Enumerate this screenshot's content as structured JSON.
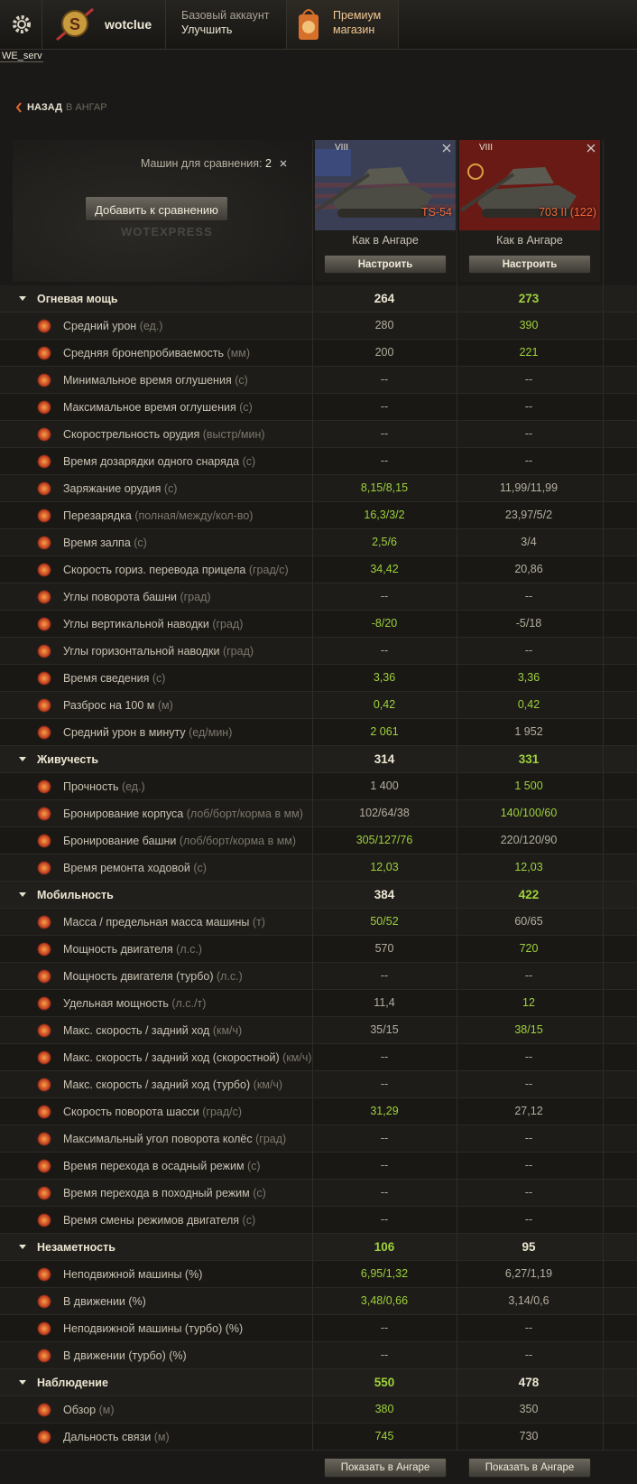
{
  "header": {
    "user": "wotclue",
    "account": "Базовый аккаунт",
    "upgrade": "Улучшить",
    "premium": "Премиум",
    "shop": "магазин",
    "server": "WE_serv"
  },
  "nav": {
    "back": "НАЗАД",
    "to": "В АНГАР"
  },
  "compare": {
    "count_label": "Машин для сравнения:",
    "count": 2,
    "add": "Добавить к сравнению",
    "watermark": "WOTEXPRESS"
  },
  "tanks": [
    {
      "tier": "VIII",
      "name": "TS-54",
      "setup": "Как в Ангаре",
      "configure": "Настроить",
      "show": "Показать в Ангаре"
    },
    {
      "tier": "VIII",
      "name": "703 II (122)",
      "setup": "Как в Ангаре",
      "configure": "Настроить",
      "show": "Показать в Ангаре"
    }
  ],
  "sections": [
    {
      "title": "Огневая мощь",
      "values": [
        264,
        273
      ],
      "better": [
        false,
        true
      ],
      "rows": [
        {
          "label": "Средний урон",
          "unit": "(ед.)",
          "values": [
            "280",
            "390"
          ],
          "better": [
            false,
            true
          ]
        },
        {
          "label": "Средняя бронепробиваемость",
          "unit": "(мм)",
          "values": [
            "200",
            "221"
          ],
          "better": [
            false,
            true
          ]
        },
        {
          "label": "Минимальное время оглушения",
          "unit": "(с)",
          "values": [
            "--",
            "--"
          ],
          "better": [
            false,
            false
          ]
        },
        {
          "label": "Максимальное время оглушения",
          "unit": "(с)",
          "values": [
            "--",
            "--"
          ],
          "better": [
            false,
            false
          ]
        },
        {
          "label": "Скорострельность орудия",
          "unit": "(выстр/мин)",
          "values": [
            "--",
            "--"
          ],
          "better": [
            false,
            false
          ]
        },
        {
          "label": "Время дозарядки одного снаряда",
          "unit": "(с)",
          "values": [
            "--",
            "--"
          ],
          "better": [
            false,
            false
          ]
        },
        {
          "label": "Заряжание орудия",
          "unit": "(с)",
          "values": [
            "8,15/8,15",
            "11,99/11,99"
          ],
          "better": [
            true,
            false
          ]
        },
        {
          "label": "Перезарядка",
          "unit": "(полная/между/кол-во)",
          "values": [
            "16,3/3/2",
            "23,97/5/2"
          ],
          "better": [
            true,
            false
          ]
        },
        {
          "label": "Время залпа",
          "unit": "(с)",
          "values": [
            "2,5/6",
            "3/4"
          ],
          "better": [
            true,
            false
          ]
        },
        {
          "label": "Скорость гориз. перевода прицела",
          "unit": "(град/с)",
          "values": [
            "34,42",
            "20,86"
          ],
          "better": [
            true,
            false
          ]
        },
        {
          "label": "Углы поворота башни",
          "unit": "(град)",
          "values": [
            "--",
            "--"
          ],
          "better": [
            false,
            false
          ]
        },
        {
          "label": "Углы вертикальной наводки",
          "unit": "(град)",
          "values": [
            "-8/20",
            "-5/18"
          ],
          "better": [
            true,
            false
          ]
        },
        {
          "label": "Углы горизонтальной наводки",
          "unit": "(град)",
          "values": [
            "--",
            "--"
          ],
          "better": [
            false,
            false
          ]
        },
        {
          "label": "Время сведения",
          "unit": "(с)",
          "values": [
            "3,36",
            "3,36"
          ],
          "better": [
            true,
            true
          ]
        },
        {
          "label": "Разброс на 100 м",
          "unit": "(м)",
          "values": [
            "0,42",
            "0,42"
          ],
          "better": [
            true,
            true
          ]
        },
        {
          "label": "Средний урон в минуту",
          "unit": "(ед/мин)",
          "values": [
            "2 061",
            "1 952"
          ],
          "better": [
            true,
            false
          ]
        }
      ]
    },
    {
      "title": "Живучесть",
      "values": [
        314,
        331
      ],
      "better": [
        false,
        true
      ],
      "rows": [
        {
          "label": "Прочность",
          "unit": "(ед.)",
          "values": [
            "1 400",
            "1 500"
          ],
          "better": [
            false,
            true
          ]
        },
        {
          "label": "Бронирование корпуса",
          "unit": "(лоб/борт/корма в мм)",
          "values": [
            "102/64/38",
            "140/100/60"
          ],
          "better": [
            false,
            true
          ]
        },
        {
          "label": "Бронирование башни",
          "unit": "(лоб/борт/корма в мм)",
          "values": [
            "305/127/76",
            "220/120/90"
          ],
          "better": [
            true,
            false
          ]
        },
        {
          "label": "Время ремонта ходовой",
          "unit": "(с)",
          "values": [
            "12,03",
            "12,03"
          ],
          "better": [
            true,
            true
          ]
        }
      ]
    },
    {
      "title": "Мобильность",
      "values": [
        384,
        422
      ],
      "better": [
        false,
        true
      ],
      "rows": [
        {
          "label": "Масса / предельная масса машины",
          "unit": "(т)",
          "values": [
            "50/52",
            "60/65"
          ],
          "better": [
            true,
            false
          ]
        },
        {
          "label": "Мощность двигателя",
          "unit": "(л.с.)",
          "values": [
            "570",
            "720"
          ],
          "better": [
            false,
            true
          ]
        },
        {
          "label": "Мощность двигателя (турбо)",
          "unit": "(л.с.)",
          "values": [
            "--",
            "--"
          ],
          "better": [
            false,
            false
          ]
        },
        {
          "label": "Удельная мощность",
          "unit": "(л.с./т)",
          "values": [
            "11,4",
            "12"
          ],
          "better": [
            false,
            true
          ]
        },
        {
          "label": "Макс. скорость / задний ход",
          "unit": "(км/ч)",
          "values": [
            "35/15",
            "38/15"
          ],
          "better": [
            false,
            true
          ]
        },
        {
          "label": "Макс. скорость / задний ход (скоростной)",
          "unit": "(км/ч)",
          "values": [
            "--",
            "--"
          ],
          "better": [
            false,
            false
          ]
        },
        {
          "label": "Макс. скорость / задний ход (турбо)",
          "unit": "(км/ч)",
          "values": [
            "--",
            "--"
          ],
          "better": [
            false,
            false
          ]
        },
        {
          "label": "Скорость поворота шасси",
          "unit": "(град/с)",
          "values": [
            "31,29",
            "27,12"
          ],
          "better": [
            true,
            false
          ]
        },
        {
          "label": "Максимальный угол поворота колёс",
          "unit": "(град)",
          "values": [
            "--",
            "--"
          ],
          "better": [
            false,
            false
          ]
        },
        {
          "label": "Время перехода в осадный режим ",
          "unit": "(с)",
          "values": [
            "--",
            "--"
          ],
          "better": [
            false,
            false
          ]
        },
        {
          "label": "Время перехода в походный режим ",
          "unit": "(с)",
          "values": [
            "--",
            "--"
          ],
          "better": [
            false,
            false
          ]
        },
        {
          "label": "Время смены режимов двигателя",
          "unit": "(с)",
          "values": [
            "--",
            "--"
          ],
          "better": [
            false,
            false
          ]
        }
      ]
    },
    {
      "title": "Незаметность",
      "values": [
        106,
        95
      ],
      "better": [
        true,
        false
      ],
      "rows": [
        {
          "label": "Неподвижной машины (%)",
          "unit": "",
          "values": [
            "6,95/1,32",
            "6,27/1,19"
          ],
          "better": [
            true,
            false
          ]
        },
        {
          "label": "В движении (%)",
          "unit": "",
          "values": [
            "3,48/0,66",
            "3,14/0,6"
          ],
          "better": [
            true,
            false
          ]
        },
        {
          "label": "Неподвижной машины (турбо) (%)",
          "unit": "",
          "values": [
            "--",
            "--"
          ],
          "better": [
            false,
            false
          ]
        },
        {
          "label": "В движении (турбо) (%)",
          "unit": "",
          "values": [
            "--",
            "--"
          ],
          "better": [
            false,
            false
          ]
        }
      ]
    },
    {
      "title": "Наблюдение",
      "values": [
        550,
        478
      ],
      "better": [
        true,
        false
      ],
      "rows": [
        {
          "label": "Обзор",
          "unit": "(м)",
          "values": [
            "380",
            "350"
          ],
          "better": [
            true,
            false
          ]
        },
        {
          "label": "Дальность связи",
          "unit": "(м)",
          "values": [
            "745",
            "730"
          ],
          "better": [
            true,
            false
          ]
        }
      ]
    }
  ]
}
